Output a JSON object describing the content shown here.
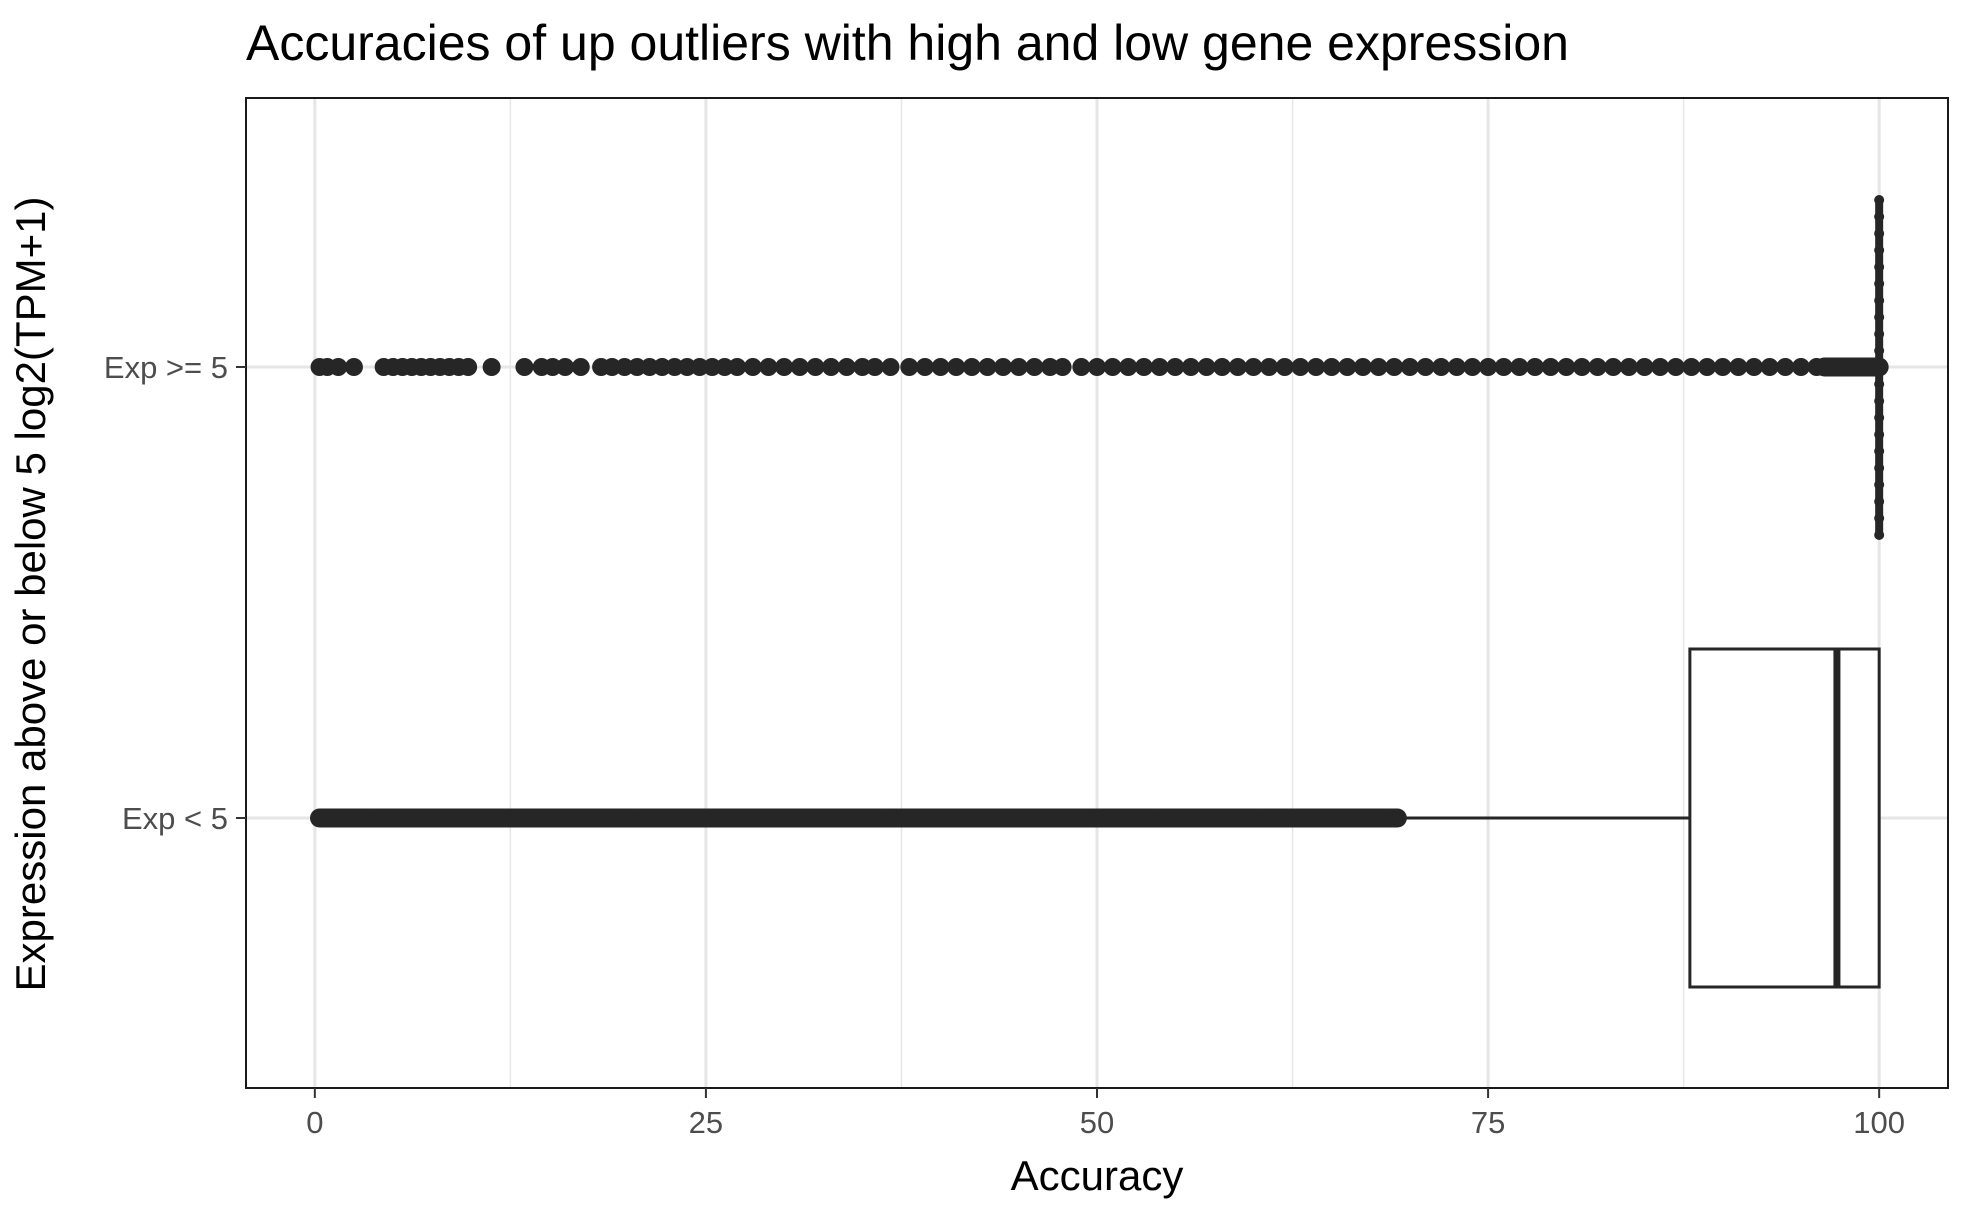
{
  "chart_data": {
    "type": "boxplot",
    "orientation": "horizontal",
    "title": "Accuracies of up outliers with high and low gene expression",
    "xlabel": "Accuracy",
    "ylabel": "Expression above or below 5 log2(TPM+1)",
    "xlim": [
      -4.4,
      104.4
    ],
    "x_ticks": [
      0,
      25,
      50,
      75,
      100
    ],
    "x_tick_labels": [
      "0",
      "25",
      "50",
      "75",
      "100"
    ],
    "categories": [
      "Exp < 5",
      "Exp >= 5"
    ],
    "grid": true,
    "theme": "black-and-white",
    "colors": {
      "marks": "#262626",
      "grid": "#e6e6e6",
      "panel_border": "#1a1a1a",
      "tick_label": "#4d4d4d"
    },
    "series": [
      {
        "category": "Exp < 5",
        "lower_whisker": 69.3,
        "q1": 87.9,
        "median": 97.3,
        "q3": 100,
        "upper_whisker": 100,
        "outlier_range": [
          0.3,
          69.2
        ],
        "outliers": [
          0.3,
          0.8,
          1.5,
          2.2,
          3.0,
          4.0,
          5.0,
          6.0,
          7.0,
          8.0,
          8.8,
          9.8,
          10.8,
          12.0,
          13.5,
          15.0,
          17.0,
          19.0,
          21.0,
          23.0,
          25.0,
          27.0,
          29.0,
          31.0,
          33.0,
          35.0,
          37.0,
          39.0,
          41.0,
          43.0,
          45.0,
          47.0,
          49.0,
          51.0,
          53.0,
          55.0,
          57.0,
          59.0,
          61.0,
          63.0,
          65.0,
          67.0,
          68.5,
          69.2
        ]
      },
      {
        "category": "Exp >= 5",
        "lower_whisker": 100,
        "q1": 100,
        "median": 100,
        "q3": 100,
        "upper_whisker": 100,
        "outliers": [
          0.3,
          0.8,
          1.5,
          2.5,
          4.4,
          5.0,
          5.6,
          6.2,
          6.8,
          7.4,
          8.0,
          8.6,
          9.2,
          9.8,
          11.3,
          13.4,
          14.5,
          15.2,
          16.0,
          17.0,
          18.3,
          19.0,
          19.8,
          20.6,
          21.4,
          22.2,
          23.0,
          23.8,
          24.6,
          25.4,
          26.2,
          27.0,
          28.0,
          29.0,
          30.0,
          31.0,
          32.0,
          33.0,
          34.0,
          35.0,
          35.8,
          36.8,
          38.0,
          39.0,
          40.0,
          41.0,
          42.0,
          43.0,
          44.0,
          45.0,
          46.0,
          47.0,
          47.8,
          49.0,
          50.0,
          51.0,
          52.0,
          53.0,
          54.0,
          55.0,
          56.0,
          57.0,
          58.0,
          59.0,
          60.0,
          61.0,
          62.0,
          63.0,
          64.0,
          65.0,
          66.0,
          67.0,
          68.0,
          69.0,
          70.0,
          71.0,
          72.0,
          73.0,
          74.0,
          75.0,
          76.0,
          77.0,
          78.0,
          79.0,
          80.0,
          81.0,
          82.0,
          83.0,
          84.0,
          85.0,
          86.0,
          87.0,
          88.0,
          89.0,
          90.0,
          91.0,
          92.0,
          93.0,
          94.0,
          95.0,
          96.0,
          96.5,
          97.0,
          97.5,
          98.0,
          98.5,
          99.0,
          99.5
        ],
        "vertical_spread_outliers": [
          100,
          100,
          100,
          100,
          100,
          100,
          100,
          100,
          100,
          100,
          100,
          100,
          100,
          100,
          100,
          100,
          100,
          100,
          100,
          100,
          100
        ]
      }
    ]
  }
}
